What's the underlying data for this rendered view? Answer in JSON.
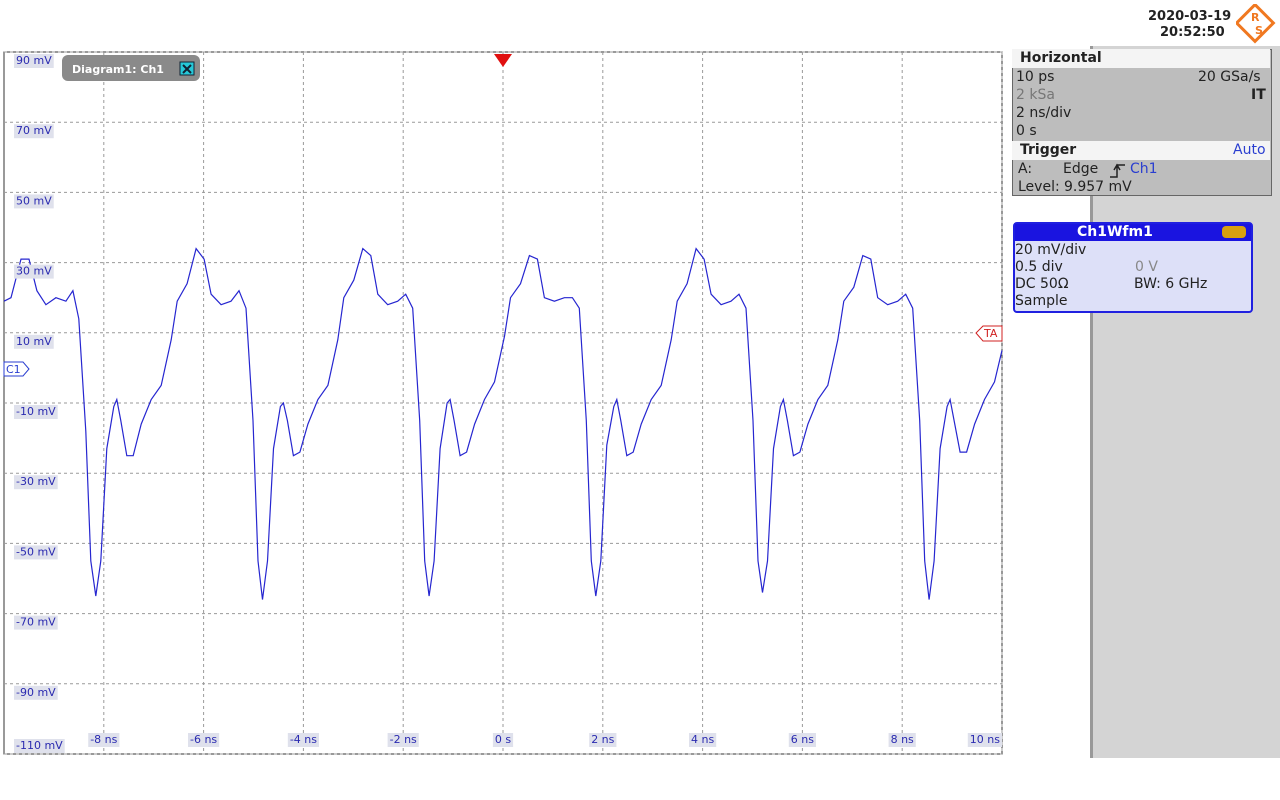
{
  "header": {
    "date": "2020-03-19",
    "time": "20:52:50",
    "logo": {
      "top": "R",
      "bottom": "S"
    }
  },
  "diagram_tab": "Diagram1: Ch1",
  "markers": {
    "channel": "C1",
    "trigger": "TA"
  },
  "chart_data": {
    "type": "line",
    "color": "#2626d0",
    "grid": true,
    "xlim": [
      -10,
      10
    ],
    "xticks": [
      {
        "value": -8,
        "label": "-8 ns"
      },
      {
        "value": -6,
        "label": "-6 ns"
      },
      {
        "value": -4,
        "label": "-4 ns"
      },
      {
        "value": -2,
        "label": "-2 ns"
      },
      {
        "value": 0,
        "label": "0 s"
      },
      {
        "value": 2,
        "label": "2 ns"
      },
      {
        "value": 4,
        "label": "4 ns"
      },
      {
        "value": 6,
        "label": "6 ns"
      },
      {
        "value": 8,
        "label": "8 ns"
      },
      {
        "value": 10,
        "label": "10 ns"
      }
    ],
    "ylim": [
      -110,
      90
    ],
    "yticks": [
      {
        "value": 90,
        "label": "90 mV"
      },
      {
        "value": 70,
        "label": "70 mV"
      },
      {
        "value": 50,
        "label": "50 mV"
      },
      {
        "value": 30,
        "label": "30 mV"
      },
      {
        "value": 10,
        "label": "10 mV"
      },
      {
        "value": -10,
        "label": "-10 mV"
      },
      {
        "value": -30,
        "label": "-30 mV"
      },
      {
        "value": -50,
        "label": "-50 mV"
      },
      {
        "value": -70,
        "label": "-70 mV"
      },
      {
        "value": -90,
        "label": "-90 mV"
      },
      {
        "value": -110,
        "label": "-110 mV"
      }
    ],
    "x": [
      -10,
      -9.86,
      -9.66,
      -9.5,
      -9.34,
      -9.16,
      -8.96,
      -8.76,
      -8.62,
      -8.5,
      -8.36,
      -8.26,
      -8.16,
      -8.06,
      -7.94,
      -7.8,
      -7.74,
      -7.66,
      -7.54,
      -7.41,
      -7.25,
      -7.05,
      -6.85,
      -6.65,
      -6.53,
      -6.33,
      -6.15,
      -5.99,
      -5.85,
      -5.65,
      -5.45,
      -5.29,
      -5.15,
      -5.01,
      -4.91,
      -4.82,
      -4.72,
      -4.6,
      -4.46,
      -4.4,
      -4.32,
      -4.2,
      -4.07,
      -3.91,
      -3.71,
      -3.51,
      -3.31,
      -3.19,
      -2.99,
      -2.81,
      -2.65,
      -2.51,
      -2.31,
      -2.11,
      -1.95,
      -1.81,
      -1.67,
      -1.57,
      -1.48,
      -1.38,
      -1.26,
      -1.12,
      -1.06,
      -0.98,
      -0.86,
      -0.73,
      -0.57,
      -0.37,
      -0.17,
      0.03,
      0.15,
      0.35,
      0.53,
      0.69,
      0.83,
      1.03,
      1.23,
      1.39,
      1.53,
      1.67,
      1.77,
      1.86,
      1.96,
      2.08,
      2.22,
      2.28,
      2.36,
      2.48,
      2.61,
      2.77,
      2.97,
      3.17,
      3.37,
      3.49,
      3.69,
      3.87,
      4.03,
      4.17,
      4.37,
      4.57,
      4.73,
      4.87,
      5.01,
      5.11,
      5.2,
      5.3,
      5.42,
      5.56,
      5.62,
      5.7,
      5.82,
      5.95,
      6.11,
      6.31,
      6.51,
      6.71,
      6.83,
      7.03,
      7.21,
      7.37,
      7.51,
      7.71,
      7.91,
      8.07,
      8.21,
      8.35,
      8.45,
      8.54,
      8.64,
      8.76,
      8.9,
      8.96,
      9.04,
      9.16,
      9.29,
      9.45,
      9.65,
      9.85,
      10
    ],
    "values": [
      19,
      20,
      31,
      31,
      22,
      18,
      20,
      19,
      22,
      14,
      -18,
      -55,
      -65,
      -55,
      -23,
      -11,
      -9,
      -15,
      -25,
      -25,
      -16,
      -9,
      -5,
      8,
      19,
      24,
      34,
      31,
      21,
      18,
      19,
      22,
      17,
      -15,
      -55,
      -66,
      -55,
      -23,
      -11,
      -10,
      -15,
      -25,
      -24,
      -16,
      -9,
      -5,
      8,
      20,
      25,
      34,
      32,
      21,
      18,
      19,
      21,
      17,
      -15,
      -55,
      -65,
      -55,
      -23,
      -10,
      -9,
      -15,
      -25,
      -24,
      -16,
      -9,
      -4,
      9,
      20,
      24,
      32,
      31,
      20,
      19,
      20,
      20,
      17,
      -15,
      -55,
      -65,
      -55,
      -22,
      -11,
      -9,
      -15,
      -25,
      -24,
      -16,
      -9,
      -5,
      8,
      19,
      24,
      34,
      31,
      21,
      18,
      19,
      21,
      17,
      -15,
      -55,
      -64,
      -55,
      -23,
      -11,
      -9,
      -15,
      -25,
      -24,
      -16,
      -9,
      -5,
      8,
      19,
      23,
      32,
      31,
      20,
      18,
      19,
      21,
      17,
      -15,
      -55,
      -66,
      -55,
      -23,
      -11,
      -9,
      -15,
      -24,
      -24,
      -16,
      -9,
      -4,
      5
    ]
  },
  "horizontal": {
    "title": "Horizontal",
    "resolution": "10 ps",
    "sample_rate": "20 GSa/s",
    "record_length": "2 kSa",
    "mode": "IT",
    "time_scale": "2 ns/div",
    "position": "0 s"
  },
  "trigger": {
    "title": "Trigger",
    "mode": "Auto",
    "event": "A:",
    "kind": "Edge",
    "source": "Ch1",
    "level_label": "Level:",
    "level": "9.957 mV"
  },
  "channel": {
    "title": "Ch1Wfm1",
    "scale": "20 mV/div",
    "offset_div": "0.5 div",
    "offset": "0 V",
    "coupling": "DC 50Ω",
    "bandwidth": "BW: 6 GHz",
    "acquisition": "Sample"
  }
}
